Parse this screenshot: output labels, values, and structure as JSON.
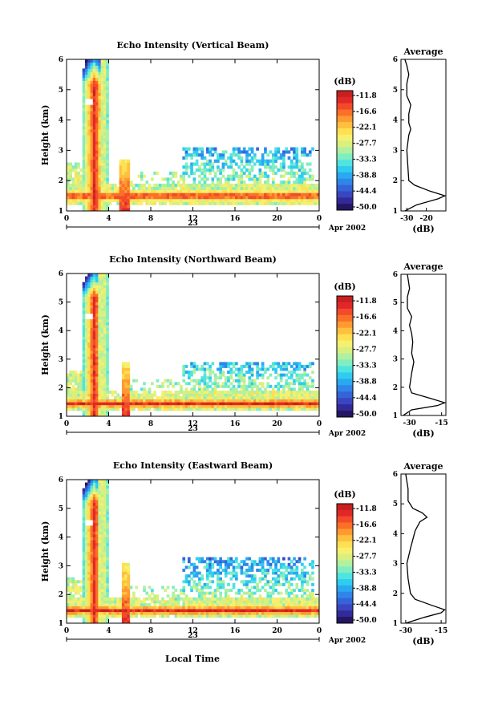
{
  "xlabel": "Local Time",
  "date_label": "Apr 2002",
  "day_label": "23",
  "colorbar": {
    "unit": "(dB)",
    "ticks": [
      "-11.8",
      "-16.6",
      "-22.1",
      "-27.7",
      "-33.3",
      "-38.8",
      "-44.4",
      "-50.0"
    ],
    "colors": [
      "#c82020",
      "#e02828",
      "#f24a2a",
      "#fa7028",
      "#ff9a30",
      "#ffc040",
      "#ffe050",
      "#f6f070",
      "#d8f080",
      "#b0f0a0",
      "#80eec0",
      "#50e4e0",
      "#30ccf0",
      "#2aa8f0",
      "#2f86e8",
      "#3564d8",
      "#3a46c0",
      "#332a9a",
      "#241660"
    ]
  },
  "chart_data": [
    {
      "type": "heatmap",
      "title": "Echo Intensity (Vertical Beam)",
      "ylabel": "Height (km)",
      "xlim": [
        0,
        24
      ],
      "ylim": [
        1,
        6
      ],
      "xticks": [
        "0",
        "4",
        "8",
        "12",
        "16",
        "20",
        "0"
      ],
      "yticks": [
        "1",
        "2",
        "3",
        "4",
        "5",
        "6"
      ],
      "features": {
        "layer_height": 1.5,
        "layer_band": [
          1.3,
          1.7
        ],
        "plume": [
          1.5,
          3.8
        ],
        "plume_top": 6.0,
        "secondary_plume": [
          5.0,
          6.0,
          2.7
        ],
        "evening_top": 3.1,
        "cell_hole_height": 4.6
      },
      "profile": {
        "title": "Average",
        "xlabel": "(dB)",
        "xlim": [
          -33,
          -10
        ],
        "xticks": [
          "-30",
          "-20"
        ],
        "ylim": [
          1,
          6
        ],
        "yticks": [
          "1",
          "2",
          "3",
          "4",
          "5",
          "6"
        ],
        "points": [
          [
            -31,
            1.0
          ],
          [
            -25,
            1.2
          ],
          [
            -14,
            1.4
          ],
          [
            -10.5,
            1.5
          ],
          [
            -18,
            1.65
          ],
          [
            -26,
            1.85
          ],
          [
            -29,
            2.0
          ],
          [
            -29.5,
            2.5
          ],
          [
            -30,
            3.0
          ],
          [
            -29,
            3.5
          ],
          [
            -28,
            3.7
          ],
          [
            -29,
            3.9
          ],
          [
            -29,
            4.2
          ],
          [
            -28,
            4.5
          ],
          [
            -30,
            4.8
          ],
          [
            -30,
            5.2
          ],
          [
            -29,
            5.5
          ],
          [
            -30,
            5.8
          ],
          [
            -31,
            6.0
          ]
        ]
      }
    },
    {
      "type": "heatmap",
      "title": "Echo Intensity (Northward Beam)",
      "ylabel": "Height (km)",
      "xlim": [
        0,
        24
      ],
      "ylim": [
        1,
        6
      ],
      "xticks": [
        "0",
        "4",
        "8",
        "12",
        "16",
        "20",
        "0"
      ],
      "yticks": [
        "1",
        "2",
        "3",
        "4",
        "5",
        "6"
      ],
      "features": {
        "layer_height": 1.45,
        "layer_band": [
          1.3,
          1.65
        ],
        "plume": [
          1.6,
          3.7
        ],
        "plume_top": 6.0,
        "secondary_plume": [
          5.2,
          5.9,
          2.9
        ],
        "evening_top": 2.9,
        "cell_hole_height": 4.5
      },
      "profile": {
        "title": "Average",
        "xlabel": "(dB)",
        "xlim": [
          -34,
          -13
        ],
        "xticks": [
          "-30",
          "-15"
        ],
        "ylim": [
          1,
          6
        ],
        "yticks": [
          "1",
          "2",
          "3",
          "4",
          "5",
          "6"
        ],
        "points": [
          [
            -33,
            1.0
          ],
          [
            -29,
            1.2
          ],
          [
            -17,
            1.35
          ],
          [
            -13.5,
            1.45
          ],
          [
            -20,
            1.6
          ],
          [
            -29,
            1.8
          ],
          [
            -30,
            2.0
          ],
          [
            -29,
            2.5
          ],
          [
            -28,
            2.9
          ],
          [
            -29,
            3.2
          ],
          [
            -28.5,
            3.6
          ],
          [
            -29,
            3.9
          ],
          [
            -30,
            4.2
          ],
          [
            -29,
            4.5
          ],
          [
            -31,
            4.8
          ],
          [
            -31,
            5.2
          ],
          [
            -30,
            5.5
          ],
          [
            -31,
            6.0
          ]
        ]
      }
    },
    {
      "type": "heatmap",
      "title": "Echo Intensity (Eastward Beam)",
      "ylabel": "Height (km)",
      "xlim": [
        0,
        24
      ],
      "ylim": [
        1,
        6
      ],
      "xticks": [
        "0",
        "4",
        "8",
        "12",
        "16",
        "20",
        "0"
      ],
      "yticks": [
        "1",
        "2",
        "3",
        "4",
        "5",
        "6"
      ],
      "features": {
        "layer_height": 1.45,
        "layer_band": [
          1.3,
          1.6
        ],
        "plume": [
          1.6,
          3.7
        ],
        "plume_top": 6.0,
        "secondary_plume": [
          5.2,
          5.9,
          3.1
        ],
        "evening_top": 3.3,
        "cell_hole_height": 4.5
      },
      "profile": {
        "title": "Average",
        "xlabel": "(dB)",
        "xlim": [
          -32,
          -13
        ],
        "xticks": [
          "-30",
          "-15"
        ],
        "ylim": [
          1,
          6
        ],
        "yticks": [
          "1",
          "2",
          "3",
          "4",
          "5",
          "6"
        ],
        "points": [
          [
            -30,
            1.0
          ],
          [
            -22,
            1.2
          ],
          [
            -15,
            1.35
          ],
          [
            -13.5,
            1.45
          ],
          [
            -19,
            1.6
          ],
          [
            -26,
            1.8
          ],
          [
            -28,
            2.0
          ],
          [
            -29,
            2.5
          ],
          [
            -29.5,
            3.0
          ],
          [
            -28,
            3.5
          ],
          [
            -27,
            3.8
          ],
          [
            -26,
            4.1
          ],
          [
            -24,
            4.4
          ],
          [
            -21,
            4.55
          ],
          [
            -23,
            4.7
          ],
          [
            -27,
            4.85
          ],
          [
            -29,
            5.1
          ],
          [
            -29,
            5.5
          ],
          [
            -30,
            6.0
          ]
        ]
      }
    }
  ]
}
